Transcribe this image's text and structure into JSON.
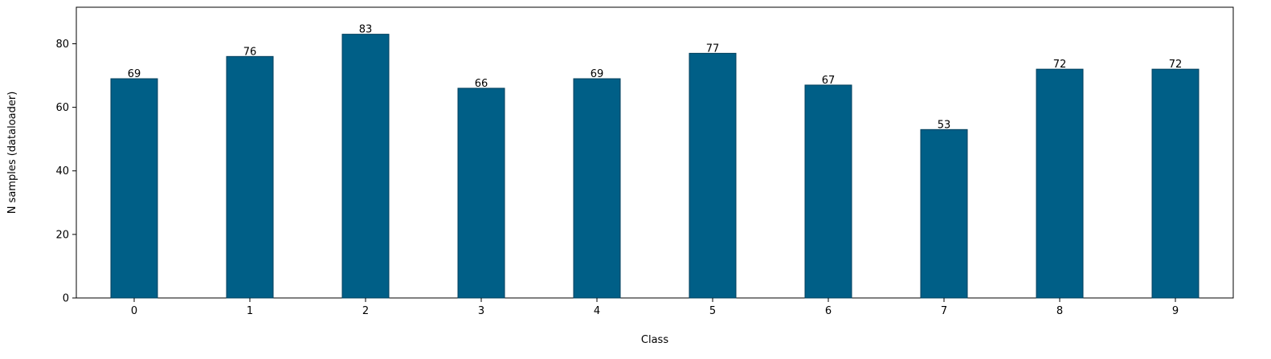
{
  "chart_data": {
    "type": "bar",
    "title": "",
    "xlabel": "Class",
    "ylabel": "N samples (dataloader)",
    "categories": [
      "0",
      "1",
      "2",
      "3",
      "4",
      "5",
      "6",
      "7",
      "8",
      "9"
    ],
    "values": [
      69,
      76,
      83,
      66,
      69,
      77,
      67,
      53,
      72,
      72
    ],
    "data_labels": [
      "69",
      "76",
      "83",
      "66",
      "69",
      "77",
      "67",
      "53",
      "72",
      "72"
    ],
    "ylim": [
      0,
      91.5
    ],
    "yticks": [
      0,
      20,
      40,
      60,
      80
    ],
    "ytick_labels": [
      "0",
      "20",
      "40",
      "60",
      "80"
    ],
    "grid": false,
    "legend": "none",
    "colors": {
      "bar": "#005f87",
      "bar_edge": "#003f5c",
      "axis": "#000000",
      "text": "#000000"
    }
  }
}
